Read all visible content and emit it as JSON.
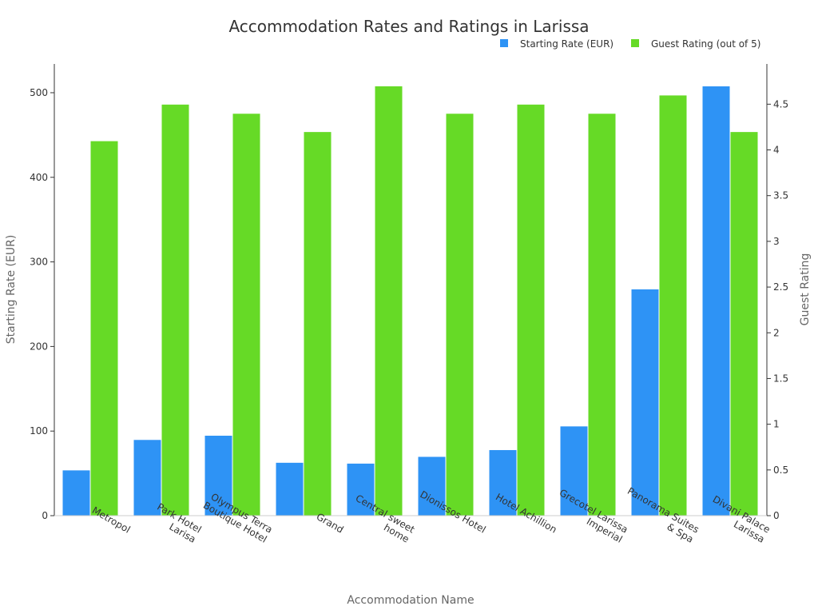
{
  "chart_data": {
    "type": "bar",
    "title": "Accommodation Rates and Ratings in Larissa",
    "xlabel": "Accommodation Name",
    "ylabel": "Starting Rate (EUR)",
    "y2label": "Guest Rating",
    "categories": [
      "Metropol",
      "Park Hotel Larisa",
      "Olympus Terra Boutique Hotel",
      "Grand",
      "Central sweet home",
      "Dionissos Hotel",
      "Hotel Achillion",
      "Grecotel Larissa Imperial",
      "Panorama Suites & Spa",
      "Divani Palace Larissa"
    ],
    "category_display_lines": [
      [
        "Metropol"
      ],
      [
        "Park Hotel",
        "Larisa"
      ],
      [
        "Olympus Terra",
        "Boutique Hotel"
      ],
      [
        "Grand"
      ],
      [
        "Central sweet",
        "home"
      ],
      [
        "Dionissos Hotel"
      ],
      [
        "Hotel Achillion"
      ],
      [
        "Grecotel Larissa",
        "Imperial"
      ],
      [
        "Panorama Suites",
        "& Spa"
      ],
      [
        "Divani Palace",
        "Larissa"
      ]
    ],
    "series": [
      {
        "name": "Starting Rate (EUR)",
        "axis": "left",
        "color": "#2E93F5",
        "values": [
          54,
          90,
          95,
          63,
          62,
          70,
          78,
          106,
          268,
          508
        ]
      },
      {
        "name": "Guest Rating (out of 5)",
        "axis": "right",
        "color": "#66DA26",
        "values": [
          4.1,
          4.5,
          4.4,
          4.2,
          4.7,
          4.4,
          4.5,
          4.4,
          4.6,
          4.2
        ]
      }
    ],
    "ylim": [
      0,
      534
    ],
    "yticks": [
      0,
      100,
      200,
      300,
      400,
      500
    ],
    "y2lim": [
      0,
      4.94
    ],
    "y2ticks": [
      0,
      0.5,
      1,
      1.5,
      2,
      2.5,
      3,
      3.5,
      4,
      4.5
    ],
    "legend_position": "top-right",
    "grid": false
  }
}
